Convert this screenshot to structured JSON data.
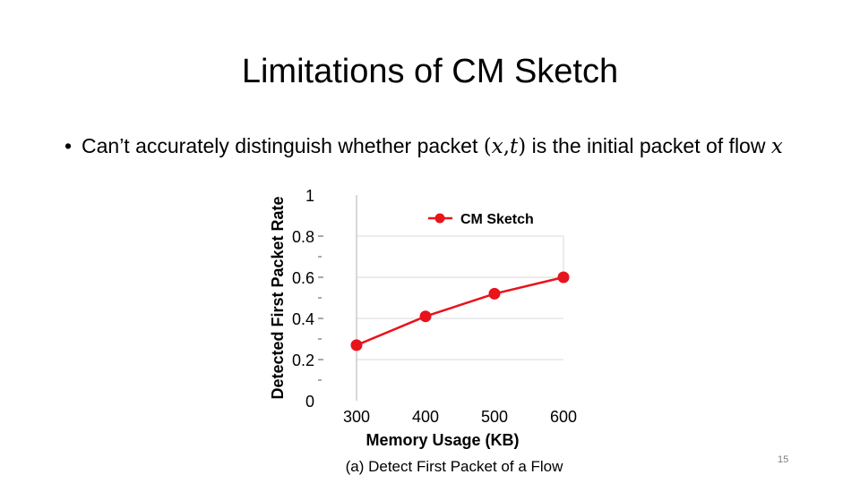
{
  "slide": {
    "title": "Limitations of CM Sketch",
    "bullet": {
      "text_before": "Can’t accurately distinguish whether packet ",
      "math_open": "(",
      "math_x": "x",
      "math_comma": ",",
      "math_t": "t",
      "math_close": ")",
      "text_middle": " is the initial packet of flow ",
      "math_x2": "x"
    },
    "page_number": "15"
  },
  "chart_data": {
    "type": "line",
    "title": "",
    "caption": "(a) Detect First Packet of a Flow",
    "xlabel": "Memory Usage (KB)",
    "ylabel": "Detected First Packet Rate",
    "x": [
      300,
      400,
      500,
      600
    ],
    "x_tick_labels": [
      "300",
      "400",
      "500",
      "600"
    ],
    "y_ticks": [
      0,
      0.2,
      0.4,
      0.6,
      0.8,
      1
    ],
    "y_tick_labels": [
      "0",
      "0.2",
      "0.4",
      "0.6",
      "0.8",
      "1"
    ],
    "ylim": [
      0,
      1
    ],
    "grid": true,
    "legend_position": "top-right",
    "series": [
      {
        "name": "CM Sketch",
        "values": [
          0.27,
          0.41,
          0.52,
          0.6
        ],
        "color": "#e8131b"
      }
    ]
  }
}
